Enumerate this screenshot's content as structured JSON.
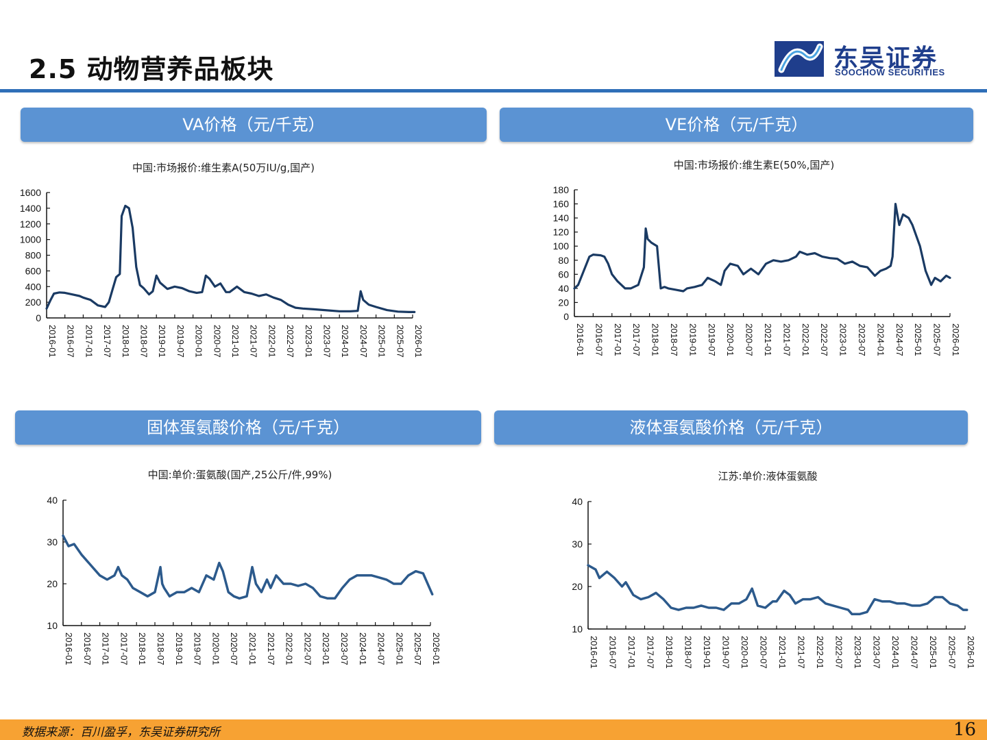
{
  "page": {
    "title": "2.5 动物营养品板块",
    "logo_cn": "东吴证券",
    "logo_en": "SOOCHOW SECURITIES",
    "footer_source": "数据来源：百川盈孚，东吴证券研究所",
    "page_number": "16"
  },
  "colors": {
    "accent": "#2f6fb8",
    "header": "#5b93d3",
    "line1": "#1a3a63",
    "line2": "#2c5a8c",
    "footer": "#f7a233"
  },
  "x_ticks": [
    "2016-01",
    "2016-07",
    "2017-01",
    "2017-07",
    "2018-01",
    "2018-07",
    "2019-01",
    "2019-07",
    "2020-01",
    "2020-07",
    "2021-01",
    "2021-07",
    "2022-01",
    "2022-07",
    "2023-01",
    "2023-07",
    "2024-01",
    "2024-07",
    "2025-01",
    "2025-07",
    "2026-01"
  ],
  "chart_data": [
    {
      "type": "line",
      "header": "VA价格（元/千克）",
      "title": "中国:市场报价:维生素A(50万IU/g,国产)",
      "ylim": [
        0,
        1600
      ],
      "yticks": [
        0,
        200,
        400,
        600,
        800,
        1000,
        1200,
        1400,
        1600
      ],
      "x": [
        2016.0,
        2016.1,
        2016.2,
        2016.35,
        2016.5,
        2016.7,
        2016.9,
        2017.0,
        2017.2,
        2017.4,
        2017.6,
        2017.7,
        2017.8,
        2017.9,
        2018.0,
        2018.05,
        2018.15,
        2018.25,
        2018.35,
        2018.45,
        2018.55,
        2018.65,
        2018.8,
        2018.9,
        2019.0,
        2019.1,
        2019.3,
        2019.5,
        2019.7,
        2019.9,
        2020.1,
        2020.25,
        2020.35,
        2020.45,
        2020.6,
        2020.75,
        2020.9,
        2021.0,
        2021.2,
        2021.4,
        2021.6,
        2021.8,
        2022.0,
        2022.2,
        2022.4,
        2022.6,
        2022.8,
        2023.0,
        2023.3,
        2023.6,
        2024.0,
        2024.3,
        2024.5,
        2024.58,
        2024.65,
        2024.8,
        2025.0,
        2025.3,
        2025.6,
        2025.9,
        2026.05
      ],
      "y": [
        120,
        220,
        310,
        325,
        320,
        300,
        280,
        260,
        230,
        160,
        140,
        200,
        360,
        520,
        560,
        1300,
        1430,
        1400,
        1150,
        650,
        420,
        380,
        300,
        340,
        540,
        450,
        370,
        400,
        380,
        340,
        320,
        330,
        540,
        500,
        400,
        440,
        330,
        330,
        400,
        330,
        310,
        280,
        300,
        260,
        230,
        170,
        130,
        120,
        110,
        100,
        85,
        85,
        90,
        340,
        230,
        170,
        140,
        100,
        80,
        75,
        75
      ]
    },
    {
      "type": "line",
      "header": "VE价格（元/千克）",
      "title": "中国:市场报价:维生素E(50%,国产)",
      "ylim": [
        0,
        180
      ],
      "yticks": [
        0,
        20,
        40,
        60,
        80,
        100,
        120,
        140,
        160,
        180
      ],
      "x": [
        2016.0,
        2016.1,
        2016.25,
        2016.4,
        2016.5,
        2016.7,
        2016.8,
        2016.9,
        2017.0,
        2017.15,
        2017.35,
        2017.5,
        2017.7,
        2017.85,
        2017.9,
        2017.95,
        2018.05,
        2018.2,
        2018.3,
        2018.4,
        2018.5,
        2018.7,
        2018.9,
        2019.0,
        2019.2,
        2019.4,
        2019.55,
        2019.75,
        2019.9,
        2020.0,
        2020.15,
        2020.35,
        2020.5,
        2020.7,
        2020.9,
        2021.1,
        2021.3,
        2021.5,
        2021.7,
        2021.9,
        2022.0,
        2022.2,
        2022.4,
        2022.6,
        2022.8,
        2023.0,
        2023.2,
        2023.4,
        2023.6,
        2023.8,
        2024.0,
        2024.15,
        2024.3,
        2024.42,
        2024.47,
        2024.55,
        2024.65,
        2024.75,
        2024.9,
        2025.0,
        2025.2,
        2025.35,
        2025.5,
        2025.6,
        2025.75,
        2025.9,
        2026.0
      ],
      "y": [
        40,
        45,
        65,
        85,
        88,
        87,
        85,
        75,
        60,
        50,
        40,
        40,
        45,
        70,
        125,
        110,
        105,
        100,
        40,
        42,
        40,
        38,
        36,
        40,
        42,
        45,
        55,
        50,
        45,
        65,
        75,
        72,
        60,
        68,
        60,
        75,
        80,
        78,
        80,
        85,
        92,
        88,
        90,
        85,
        83,
        82,
        75,
        78,
        72,
        70,
        58,
        65,
        68,
        72,
        85,
        160,
        130,
        145,
        140,
        130,
        100,
        65,
        45,
        55,
        50,
        58,
        55
      ]
    },
    {
      "type": "line",
      "header": "固体蛋氨酸价格（元/千克）",
      "title": "中国:单价:蛋氨酸(国产,25公斤/件,99%)",
      "ylim": [
        10,
        40
      ],
      "yticks": [
        10,
        20,
        30,
        40
      ],
      "x": [
        2016.0,
        2016.15,
        2016.3,
        2016.5,
        2016.7,
        2016.9,
        2017.0,
        2017.2,
        2017.4,
        2017.5,
        2017.6,
        2017.75,
        2017.9,
        2018.1,
        2018.3,
        2018.5,
        2018.65,
        2018.7,
        2018.75,
        2018.9,
        2019.1,
        2019.3,
        2019.5,
        2019.7,
        2019.9,
        2020.1,
        2020.25,
        2020.35,
        2020.5,
        2020.65,
        2020.8,
        2021.0,
        2021.15,
        2021.25,
        2021.4,
        2021.55,
        2021.65,
        2021.8,
        2022.0,
        2022.2,
        2022.4,
        2022.6,
        2022.8,
        2023.0,
        2023.2,
        2023.4,
        2023.6,
        2023.8,
        2024.0,
        2024.2,
        2024.4,
        2024.6,
        2024.8,
        2025.0,
        2025.2,
        2025.4,
        2025.6,
        2025.8,
        2025.95,
        2026.05
      ],
      "y": [
        31.5,
        29,
        29.5,
        27,
        25,
        23,
        22,
        21,
        22,
        24,
        22,
        21,
        19,
        18,
        17,
        18,
        24,
        20,
        19,
        17,
        18,
        18,
        19,
        18,
        22,
        21,
        25,
        23,
        18,
        17,
        16.5,
        17,
        24,
        20,
        18,
        21,
        19,
        22,
        20,
        20,
        19.5,
        20,
        19,
        17,
        16.5,
        16.5,
        19,
        21,
        22,
        22,
        22,
        21.5,
        21,
        20,
        20,
        22,
        23,
        22.5,
        19.5,
        17.5
      ]
    },
    {
      "type": "line",
      "header": "液体蛋氨酸价格（元/千克）",
      "title": "江苏:单价:液体蛋氨酸",
      "ylim": [
        10,
        40
      ],
      "yticks": [
        10,
        20,
        30,
        40
      ],
      "x": [
        2016.0,
        2016.2,
        2016.3,
        2016.5,
        2016.7,
        2016.9,
        2017.0,
        2017.2,
        2017.4,
        2017.6,
        2017.8,
        2018.0,
        2018.2,
        2018.4,
        2018.6,
        2018.8,
        2019.0,
        2019.2,
        2019.4,
        2019.6,
        2019.8,
        2020.0,
        2020.2,
        2020.35,
        2020.5,
        2020.7,
        2020.9,
        2021.0,
        2021.2,
        2021.35,
        2021.5,
        2021.7,
        2021.9,
        2022.1,
        2022.3,
        2022.5,
        2022.7,
        2022.9,
        2023.0,
        2023.2,
        2023.4,
        2023.6,
        2023.8,
        2024.0,
        2024.2,
        2024.4,
        2024.6,
        2024.8,
        2025.0,
        2025.2,
        2025.4,
        2025.6,
        2025.8,
        2025.95,
        2026.05
      ],
      "y": [
        25,
        24,
        22,
        23.5,
        22,
        20,
        21,
        18,
        17,
        17.5,
        18.5,
        17,
        15,
        14.5,
        15,
        15,
        15.5,
        15,
        15,
        14.5,
        16,
        16,
        17,
        19.5,
        15.5,
        15,
        16.5,
        16.5,
        19,
        18,
        16,
        17,
        17,
        17.5,
        16,
        15.5,
        15,
        14.5,
        13.5,
        13.5,
        14,
        17,
        16.5,
        16.5,
        16,
        16,
        15.5,
        15.5,
        16,
        17.5,
        17.5,
        16,
        15.5,
        14.5,
        14.5
      ]
    }
  ]
}
